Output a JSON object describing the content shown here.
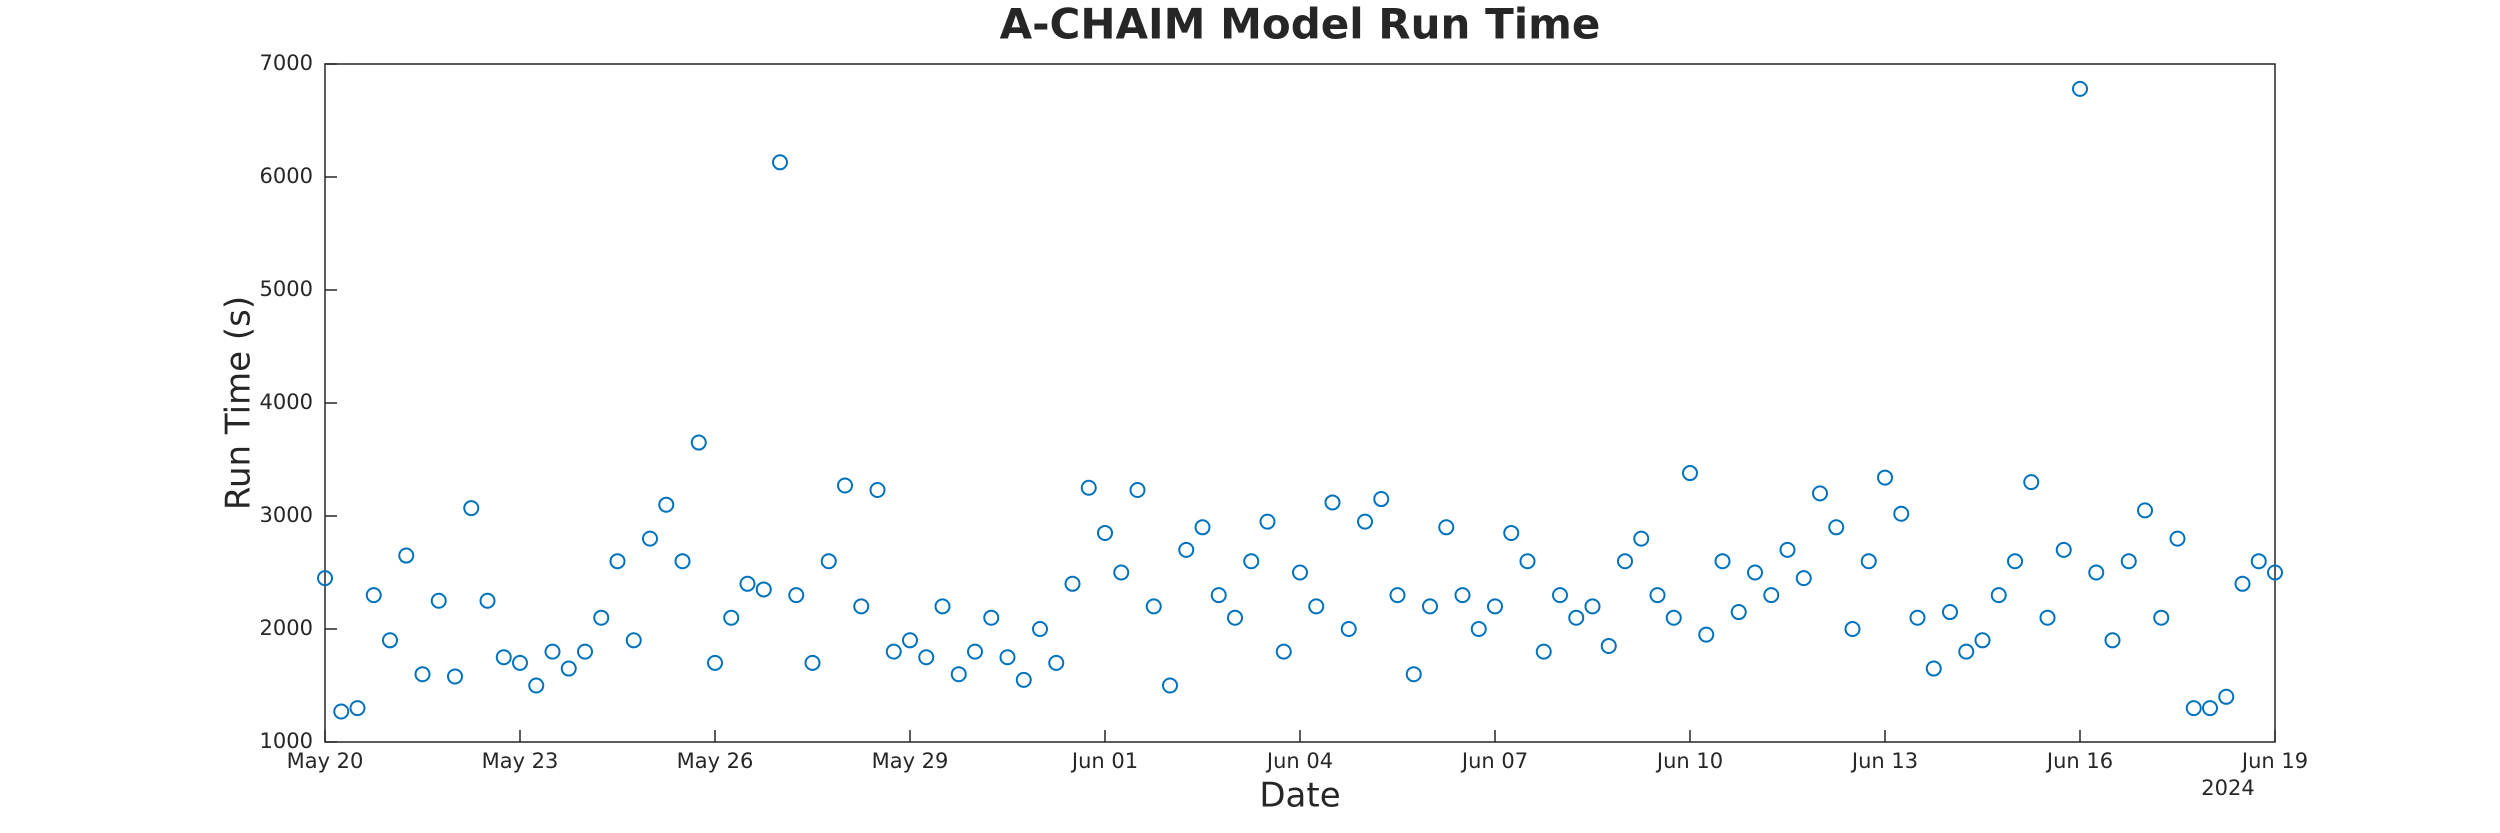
{
  "chart_data": {
    "type": "scatter",
    "title": "A-CHAIM Model Run Time",
    "xlabel": "Date",
    "ylabel": "Run Time (s)",
    "x_year_label": "2024",
    "color": "#0072BD",
    "xlim": [
      "2024-05-20",
      "2024-06-19"
    ],
    "xticks": [
      {
        "value": "2024-05-20",
        "label": "May 20"
      },
      {
        "value": "2024-05-23",
        "label": "May 23"
      },
      {
        "value": "2024-05-26",
        "label": "May 26"
      },
      {
        "value": "2024-05-29",
        "label": "May 29"
      },
      {
        "value": "2024-06-01",
        "label": "Jun 01"
      },
      {
        "value": "2024-06-04",
        "label": "Jun 04"
      },
      {
        "value": "2024-06-07",
        "label": "Jun 07"
      },
      {
        "value": "2024-06-10",
        "label": "Jun 10"
      },
      {
        "value": "2024-06-13",
        "label": "Jun 13"
      },
      {
        "value": "2024-06-16",
        "label": "Jun 16"
      },
      {
        "value": "2024-06-19",
        "label": "Jun 19"
      }
    ],
    "ylim": [
      1000,
      7000
    ],
    "yticks": [
      1000,
      2000,
      3000,
      4000,
      5000,
      6000,
      7000
    ],
    "x": [
      "2024-05-20 00:00",
      "2024-05-20 06:00",
      "2024-05-20 12:00",
      "2024-05-20 18:00",
      "2024-05-21 00:00",
      "2024-05-21 06:00",
      "2024-05-21 12:00",
      "2024-05-21 18:00",
      "2024-05-22 00:00",
      "2024-05-22 06:00",
      "2024-05-22 12:00",
      "2024-05-22 18:00",
      "2024-05-23 00:00",
      "2024-05-23 06:00",
      "2024-05-23 12:00",
      "2024-05-23 18:00",
      "2024-05-24 00:00",
      "2024-05-24 06:00",
      "2024-05-24 12:00",
      "2024-05-24 18:00",
      "2024-05-25 00:00",
      "2024-05-25 06:00",
      "2024-05-25 12:00",
      "2024-05-25 18:00",
      "2024-05-26 00:00",
      "2024-05-26 06:00",
      "2024-05-26 12:00",
      "2024-05-26 18:00",
      "2024-05-27 00:00",
      "2024-05-27 06:00",
      "2024-05-27 12:00",
      "2024-05-27 18:00",
      "2024-05-28 00:00",
      "2024-05-28 06:00",
      "2024-05-28 12:00",
      "2024-05-28 18:00",
      "2024-05-29 00:00",
      "2024-05-29 06:00",
      "2024-05-29 12:00",
      "2024-05-29 18:00",
      "2024-05-30 00:00",
      "2024-05-30 06:00",
      "2024-05-30 12:00",
      "2024-05-30 18:00",
      "2024-05-31 00:00",
      "2024-05-31 06:00",
      "2024-05-31 12:00",
      "2024-05-31 18:00",
      "2024-06-01 00:00",
      "2024-06-01 06:00",
      "2024-06-01 12:00",
      "2024-06-01 18:00",
      "2024-06-02 00:00",
      "2024-06-02 06:00",
      "2024-06-02 12:00",
      "2024-06-02 18:00",
      "2024-06-03 00:00",
      "2024-06-03 06:00",
      "2024-06-03 12:00",
      "2024-06-03 18:00",
      "2024-06-04 00:00",
      "2024-06-04 06:00",
      "2024-06-04 12:00",
      "2024-06-04 18:00",
      "2024-06-05 00:00",
      "2024-06-05 06:00",
      "2024-06-05 12:00",
      "2024-06-05 18:00",
      "2024-06-06 00:00",
      "2024-06-06 06:00",
      "2024-06-06 12:00",
      "2024-06-06 18:00",
      "2024-06-07 00:00",
      "2024-06-07 06:00",
      "2024-06-07 12:00",
      "2024-06-07 18:00",
      "2024-06-08 00:00",
      "2024-06-08 06:00",
      "2024-06-08 12:00",
      "2024-06-08 18:00",
      "2024-06-09 00:00",
      "2024-06-09 06:00",
      "2024-06-09 12:00",
      "2024-06-09 18:00",
      "2024-06-10 00:00",
      "2024-06-10 06:00",
      "2024-06-10 12:00",
      "2024-06-10 18:00",
      "2024-06-11 00:00",
      "2024-06-11 06:00",
      "2024-06-11 12:00",
      "2024-06-11 18:00",
      "2024-06-12 00:00",
      "2024-06-12 06:00",
      "2024-06-12 12:00",
      "2024-06-12 18:00",
      "2024-06-13 00:00",
      "2024-06-13 06:00",
      "2024-06-13 12:00",
      "2024-06-13 18:00",
      "2024-06-14 00:00",
      "2024-06-14 06:00",
      "2024-06-14 12:00",
      "2024-06-14 18:00",
      "2024-06-15 00:00",
      "2024-06-15 06:00",
      "2024-06-15 12:00",
      "2024-06-15 18:00",
      "2024-06-16 00:00",
      "2024-06-16 06:00",
      "2024-06-16 12:00",
      "2024-06-16 18:00",
      "2024-06-17 00:00",
      "2024-06-17 06:00",
      "2024-06-17 12:00",
      "2024-06-17 18:00",
      "2024-06-18 00:00",
      "2024-06-18 06:00",
      "2024-06-18 12:00",
      "2024-06-18 18:00",
      "2024-06-19 00:00"
    ],
    "values": [
      2450,
      1270,
      1300,
      2300,
      1900,
      2650,
      1600,
      2250,
      1580,
      3070,
      2250,
      1750,
      1700,
      1500,
      1800,
      1650,
      1800,
      2100,
      2600,
      1900,
      2800,
      3100,
      2600,
      3650,
      1700,
      2100,
      2400,
      2350,
      6130,
      2300,
      1700,
      2600,
      3270,
      2200,
      3230,
      1800,
      1900,
      1750,
      2200,
      1600,
      1800,
      2100,
      1750,
      1550,
      2000,
      1700,
      2400,
      3250,
      2850,
      2500,
      3230,
      2200,
      1500,
      2700,
      2900,
      2300,
      2100,
      2600,
      2950,
      1800,
      2500,
      2200,
      3120,
      2000,
      2950,
      3150,
      2300,
      1600,
      2200,
      2900,
      2300,
      2000,
      2200,
      2850,
      2600,
      1800,
      2300,
      2100,
      2200,
      1850,
      2600,
      2800,
      2300,
      2100,
      3380,
      1950,
      2600,
      2150,
      2500,
      2300,
      2700,
      2450,
      3200,
      2900,
      2000,
      2600,
      3340,
      3020,
      2100,
      1650,
      2150,
      1800,
      1900,
      2300,
      2600,
      3300,
      2100,
      2700,
      6780,
      2500,
      1900,
      2600,
      3050,
      2100,
      2800,
      1300,
      1300,
      1400,
      2400,
      2600,
      2500
    ]
  }
}
